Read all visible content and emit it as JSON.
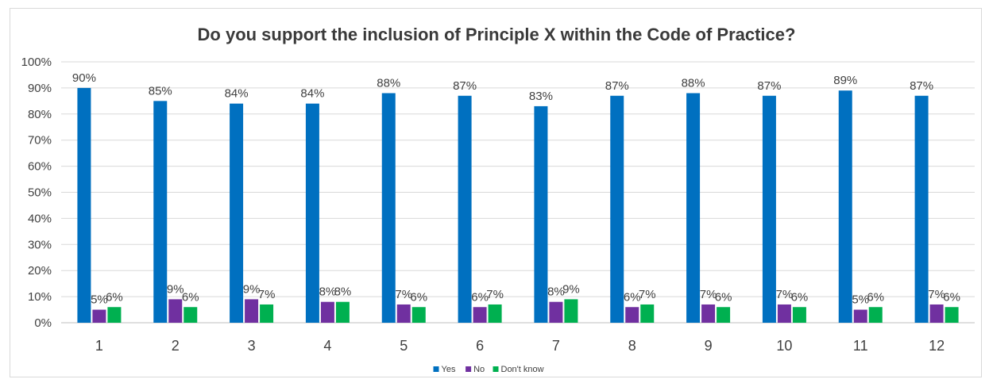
{
  "chart_data": {
    "type": "bar",
    "title": "Do you support the inclusion of Principle X within the Code of Practice?",
    "xlabel": "",
    "ylabel": "",
    "ylim": [
      0,
      100
    ],
    "yticks": [
      "0%",
      "10%",
      "20%",
      "30%",
      "40%",
      "50%",
      "60%",
      "70%",
      "80%",
      "90%",
      "100%"
    ],
    "categories": [
      "1",
      "2",
      "3",
      "4",
      "5",
      "6",
      "7",
      "8",
      "9",
      "10",
      "11",
      "12"
    ],
    "series": [
      {
        "name": "Yes",
        "color": "#0070c0",
        "values": [
          90,
          85,
          84,
          84,
          88,
          87,
          83,
          87,
          88,
          87,
          89,
          87
        ],
        "labels": [
          "90%",
          "85%",
          "84%",
          "84%",
          "88%",
          "87%",
          "83%",
          "87%",
          "88%",
          "87%",
          "89%",
          "87%"
        ]
      },
      {
        "name": "No",
        "color": "#7030a0",
        "values": [
          5,
          9,
          9,
          8,
          7,
          6,
          8,
          6,
          7,
          7,
          5,
          7
        ],
        "labels": [
          "5%",
          "9%",
          "9%",
          "8%",
          "7%",
          "6%",
          "8%",
          "6%",
          "7%",
          "7%",
          "5%",
          "7%"
        ]
      },
      {
        "name": "Don't know",
        "color": "#00b050",
        "values": [
          6,
          6,
          7,
          8,
          6,
          7,
          9,
          7,
          6,
          6,
          6,
          6
        ],
        "labels": [
          "6%",
          "6%",
          "7%",
          "8%",
          "6%",
          "7%",
          "9%",
          "7%",
          "6%",
          "6%",
          "6%",
          "6%"
        ]
      }
    ],
    "grid": true,
    "legend_position": "bottom"
  }
}
